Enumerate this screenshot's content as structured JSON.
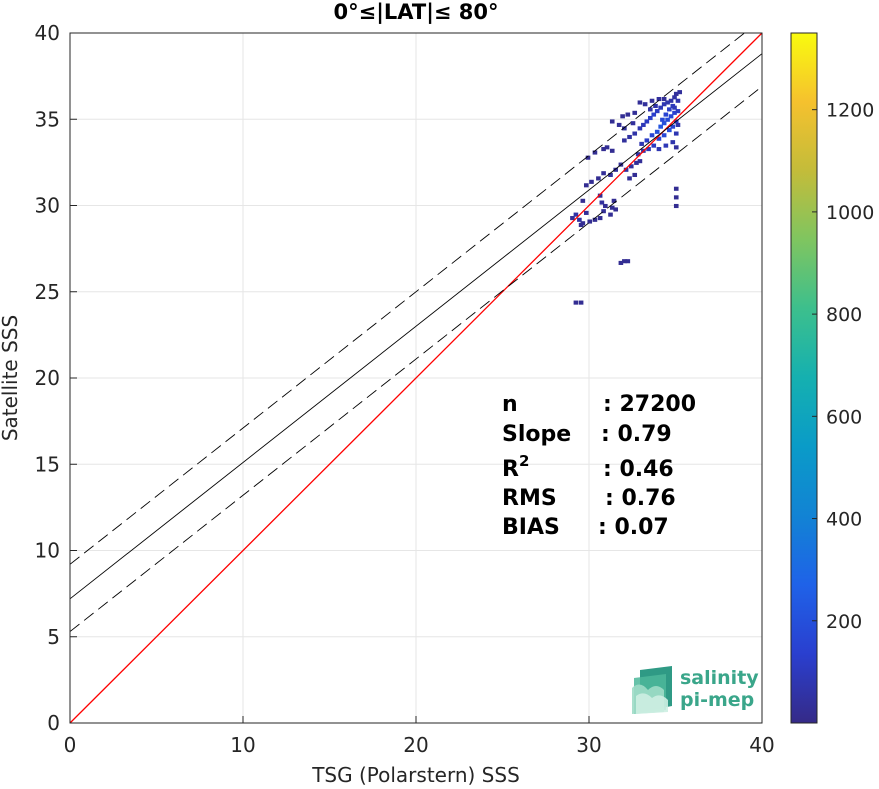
{
  "chart_data": {
    "type": "heatmap",
    "title": "0°≤|LAT|≤ 80°",
    "xlabel": "TSG (Polarstern) SSS",
    "ylabel": "Satellite SSS",
    "xlim": [
      0,
      40
    ],
    "ylim": [
      0,
      40
    ],
    "xticks": [
      "0",
      "10",
      "20",
      "30",
      "40"
    ],
    "yticks": [
      "0",
      "5",
      "10",
      "15",
      "20",
      "25",
      "30",
      "35",
      "40"
    ],
    "grid": true,
    "colorbar": {
      "range": [
        0,
        1350
      ],
      "ticks": [
        "200",
        "400",
        "600",
        "800",
        "1000",
        "1200"
      ],
      "tick_values": [
        200,
        400,
        600,
        800,
        1000,
        1200
      ],
      "colormap": "parula"
    },
    "lines": [
      {
        "role": "identity",
        "slope": 1,
        "intercept": 0,
        "color": "#ff0000",
        "style": "solid"
      },
      {
        "role": "regression",
        "slope": 0.79,
        "intercept": 7.2,
        "color": "#000000",
        "style": "solid"
      },
      {
        "role": "regression-plus-2sd",
        "slope": 0.79,
        "intercept": 9.2,
        "color": "#000000",
        "style": "dashed"
      },
      {
        "role": "regression-minus-2sd",
        "slope": 0.79,
        "intercept": 5.3,
        "color": "#000000",
        "style": "dashed"
      }
    ],
    "density_cells": [
      [
        29.0,
        29.3,
        30
      ],
      [
        29.2,
        29.5,
        60
      ],
      [
        29.4,
        29.2,
        45
      ],
      [
        29.6,
        29.0,
        25
      ],
      [
        29.5,
        28.9,
        20
      ],
      [
        29.8,
        29.6,
        30
      ],
      [
        30.0,
        29.1,
        20
      ],
      [
        30.3,
        29.2,
        20
      ],
      [
        30.6,
        29.3,
        25
      ],
      [
        30.8,
        29.7,
        30
      ],
      [
        30.7,
        30.2,
        40
      ],
      [
        30.9,
        30.0,
        25
      ],
      [
        29.6,
        30.3,
        20
      ],
      [
        29.8,
        31.2,
        20
      ],
      [
        30.1,
        31.4,
        25
      ],
      [
        30.5,
        31.6,
        20
      ],
      [
        30.8,
        31.9,
        30
      ],
      [
        31.2,
        31.8,
        40
      ],
      [
        31.5,
        32.1,
        35
      ],
      [
        31.8,
        32.4,
        30
      ],
      [
        32.1,
        32.1,
        45
      ],
      [
        32.4,
        32.3,
        40
      ],
      [
        32.7,
        32.5,
        35
      ],
      [
        32.9,
        32.6,
        30
      ],
      [
        32.3,
        31.6,
        30
      ],
      [
        32.6,
        31.8,
        25
      ],
      [
        31.0,
        33.4,
        25
      ],
      [
        31.3,
        33.2,
        20
      ],
      [
        30.8,
        33.3,
        20
      ],
      [
        32.0,
        33.8,
        40
      ],
      [
        32.3,
        34.0,
        50
      ],
      [
        32.6,
        34.2,
        60
      ],
      [
        32.9,
        34.5,
        80
      ],
      [
        33.1,
        34.7,
        90
      ],
      [
        33.3,
        34.9,
        110
      ],
      [
        33.5,
        35.1,
        120
      ],
      [
        33.7,
        35.3,
        130
      ],
      [
        33.9,
        35.5,
        110
      ],
      [
        34.1,
        35.7,
        90
      ],
      [
        34.3,
        35.9,
        80
      ],
      [
        34.5,
        36.0,
        70
      ],
      [
        34.7,
        36.1,
        60
      ],
      [
        34.9,
        36.3,
        50
      ],
      [
        35.0,
        36.5,
        40
      ],
      [
        33.0,
        33.6,
        80
      ],
      [
        33.3,
        33.8,
        120
      ],
      [
        33.6,
        34.1,
        160
      ],
      [
        33.9,
        34.3,
        200
      ],
      [
        34.1,
        34.6,
        220
      ],
      [
        34.3,
        34.8,
        200
      ],
      [
        34.5,
        35.0,
        180
      ],
      [
        34.7,
        35.2,
        160
      ],
      [
        34.9,
        35.4,
        140
      ],
      [
        35.1,
        35.5,
        110
      ],
      [
        34.0,
        33.9,
        150
      ],
      [
        34.3,
        34.1,
        170
      ],
      [
        34.6,
        34.4,
        190
      ],
      [
        34.8,
        34.6,
        160
      ],
      [
        35.0,
        34.9,
        130
      ],
      [
        34.2,
        35.0,
        170
      ],
      [
        34.4,
        35.3,
        150
      ],
      [
        34.6,
        35.6,
        120
      ],
      [
        34.8,
        35.8,
        100
      ],
      [
        35.1,
        36.1,
        70
      ],
      [
        35.2,
        36.6,
        40
      ],
      [
        33.4,
        33.3,
        90
      ],
      [
        33.7,
        33.5,
        110
      ],
      [
        34.0,
        33.3,
        80
      ],
      [
        34.4,
        33.5,
        90
      ],
      [
        34.8,
        33.7,
        70
      ],
      [
        35.0,
        33.4,
        40
      ],
      [
        32.8,
        33.0,
        50
      ],
      [
        33.1,
        33.2,
        60
      ],
      [
        35.0,
        34.2,
        80
      ],
      [
        35.1,
        34.7,
        60
      ],
      [
        34.9,
        35.7,
        90
      ],
      [
        33.8,
        35.8,
        60
      ],
      [
        33.5,
        35.6,
        50
      ],
      [
        33.2,
        35.9,
        40
      ],
      [
        32.9,
        36.0,
        30
      ],
      [
        33.6,
        36.1,
        30
      ],
      [
        34.0,
        36.2,
        40
      ],
      [
        34.3,
        36.2,
        30
      ],
      [
        32.6,
        35.4,
        30
      ],
      [
        32.2,
        35.3,
        25
      ],
      [
        31.9,
        35.2,
        25
      ],
      [
        32.5,
        34.8,
        40
      ],
      [
        31.7,
        34.7,
        30
      ],
      [
        32.0,
        34.5,
        35
      ],
      [
        31.3,
        34.9,
        20
      ],
      [
        35.0,
        31.0,
        20
      ],
      [
        35.0,
        30.5,
        20
      ],
      [
        35.0,
        30.0,
        20
      ],
      [
        30.6,
        30.6,
        20
      ],
      [
        31.4,
        30.3,
        20
      ],
      [
        31.3,
        29.9,
        25
      ],
      [
        31.2,
        29.5,
        25
      ],
      [
        31.5,
        29.8,
        20
      ],
      [
        32.2,
        26.8,
        25
      ],
      [
        31.8,
        26.7,
        20
      ],
      [
        32.0,
        26.8,
        20
      ],
      [
        29.2,
        24.4,
        20
      ],
      [
        29.5,
        24.4,
        20
      ],
      [
        29.9,
        32.8,
        20
      ],
      [
        30.3,
        33.1,
        25
      ]
    ]
  },
  "stats": {
    "labels": [
      "n",
      "Slope",
      "R",
      "RMS",
      "BIAS"
    ],
    "r_sup": "2",
    "values": [
      ": 27200",
      ": 0.79",
      ": 0.46",
      ": 0.76",
      ": 0.07"
    ]
  },
  "logo": {
    "line1": "salinity",
    "line2": "pi-mep",
    "color": "#3aa68a"
  }
}
